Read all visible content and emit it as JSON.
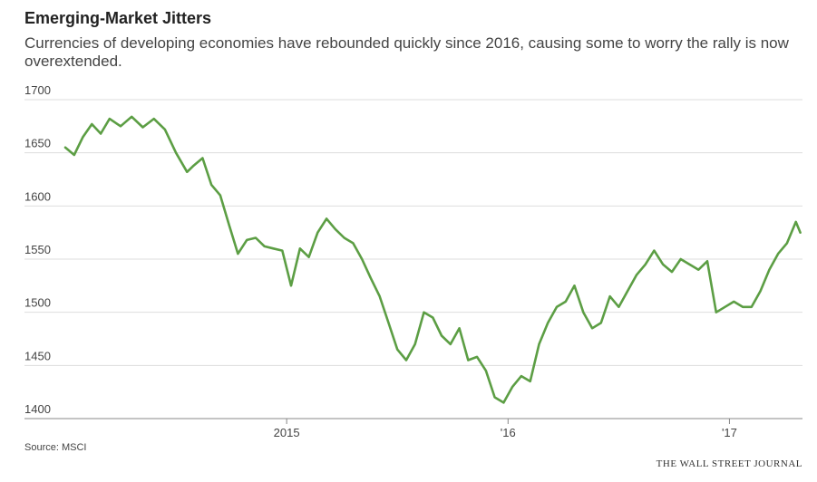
{
  "header": {
    "title": "Emerging-Market Jitters",
    "subtitle": "Currencies of developing economies have rebounded quickly since 2016, causing some to worry the rally is now overextended."
  },
  "footer": {
    "source": "Source: MSCI",
    "credit": "THE WALL STREET JOURNAL"
  },
  "colors": {
    "line": "#5c9e44",
    "grid": "#dddddd",
    "axis": "#888888"
  },
  "chart_data": {
    "type": "line",
    "title": "Emerging-Market Jitters",
    "xlabel": "",
    "ylabel": "",
    "ylim": [
      1400,
      1700
    ],
    "xlim": [
      2014.0,
      2017.33
    ],
    "yticks": [
      1700,
      1650,
      1600,
      1550,
      1500,
      1450,
      1400
    ],
    "ytick_labels": [
      "1700",
      "1650",
      "1600",
      "1550",
      "1500",
      "1450",
      "1400"
    ],
    "xticks": [
      2015,
      2016,
      2017
    ],
    "xtick_labels": [
      "2015",
      "'16",
      "'17"
    ],
    "grid": true,
    "series": [
      {
        "name": "",
        "x": [
          2014.0,
          2014.04,
          2014.08,
          2014.12,
          2014.16,
          2014.2,
          2014.25,
          2014.3,
          2014.35,
          2014.4,
          2014.45,
          2014.5,
          2014.55,
          2014.58,
          2014.62,
          2014.66,
          2014.7,
          2014.74,
          2014.78,
          2014.82,
          2014.86,
          2014.9,
          2014.94,
          2014.98,
          2015.02,
          2015.06,
          2015.1,
          2015.14,
          2015.18,
          2015.22,
          2015.26,
          2015.3,
          2015.34,
          2015.38,
          2015.42,
          2015.46,
          2015.5,
          2015.54,
          2015.58,
          2015.62,
          2015.66,
          2015.7,
          2015.74,
          2015.78,
          2015.82,
          2015.86,
          2015.9,
          2015.94,
          2015.98,
          2016.02,
          2016.06,
          2016.1,
          2016.14,
          2016.18,
          2016.22,
          2016.26,
          2016.3,
          2016.34,
          2016.38,
          2016.42,
          2016.46,
          2016.5,
          2016.54,
          2016.58,
          2016.62,
          2016.66,
          2016.7,
          2016.74,
          2016.78,
          2016.82,
          2016.86,
          2016.9,
          2016.94,
          2016.98,
          2017.02,
          2017.06,
          2017.1,
          2017.14,
          2017.18,
          2017.22,
          2017.26,
          2017.3,
          2017.32
        ],
        "values": [
          1655,
          1648,
          1665,
          1677,
          1668,
          1682,
          1675,
          1684,
          1674,
          1682,
          1672,
          1650,
          1632,
          1638,
          1645,
          1620,
          1610,
          1582,
          1555,
          1568,
          1570,
          1562,
          1560,
          1558,
          1525,
          1560,
          1552,
          1575,
          1588,
          1578,
          1570,
          1565,
          1550,
          1532,
          1515,
          1490,
          1465,
          1455,
          1470,
          1500,
          1495,
          1478,
          1470,
          1485,
          1455,
          1458,
          1445,
          1420,
          1415,
          1430,
          1440,
          1435,
          1470,
          1490,
          1505,
          1510,
          1525,
          1500,
          1485,
          1490,
          1515,
          1505,
          1520,
          1535,
          1545,
          1558,
          1545,
          1538,
          1550,
          1545,
          1540,
          1548,
          1500,
          1505,
          1510,
          1505,
          1505,
          1520,
          1540,
          1555,
          1565,
          1585,
          1575
        ]
      }
    ]
  }
}
